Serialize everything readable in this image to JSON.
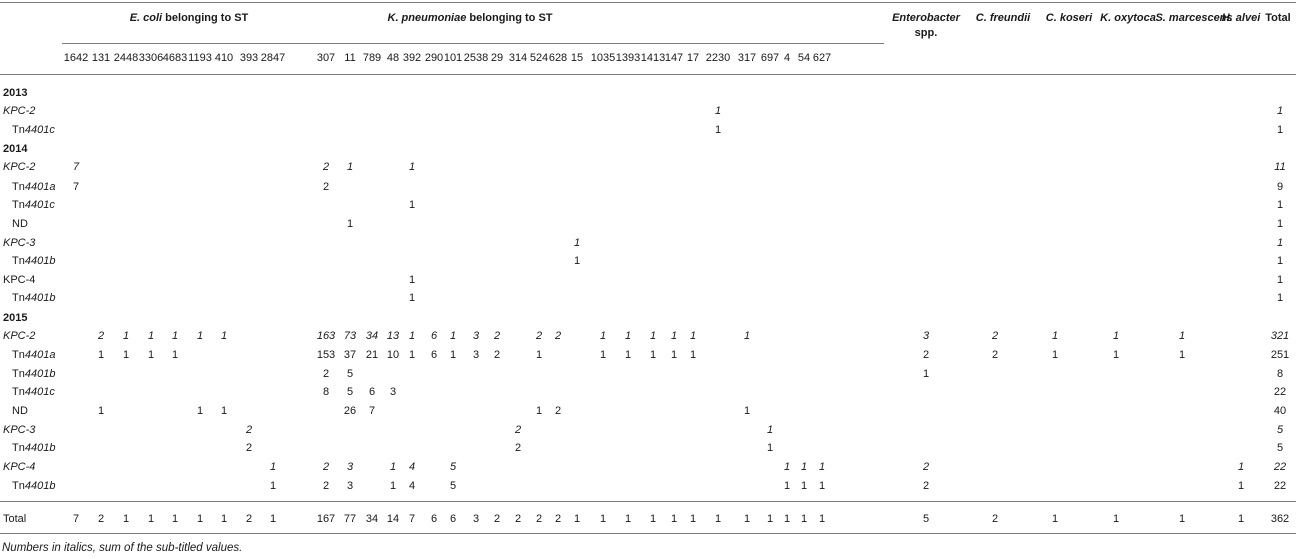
{
  "groups": {
    "ecoli_species": "E. coli",
    "ecoli_suffix": " belonging to ST",
    "kpn_species": "K. pneumoniae",
    "kpn_suffix": " belonging to ST",
    "enterobacter_line1": "Enterobacter",
    "enterobacter_line2": "spp.",
    "c_freundii": "C. freundii",
    "c_koseri": "C. koseri",
    "k_oxytoca": "K. oxytoca",
    "s_marcescens": "S. marcescens",
    "h_alvei": "H. alvei",
    "total": "Total"
  },
  "st_columns": [
    "1642",
    "131",
    "2448",
    "3306",
    "4683",
    "1193",
    "410",
    "393",
    "2847",
    "307",
    "11",
    "789",
    "48",
    "392",
    "290",
    "101",
    "2538",
    "29",
    "314",
    "524",
    "628",
    "15",
    "1035",
    "1393",
    "1413",
    "147",
    "17",
    "2230",
    "317",
    "697",
    "4",
    "54",
    "627"
  ],
  "rows": [
    {
      "label": "2013",
      "type": "year"
    },
    {
      "label": "KPC-2",
      "type": "kpc",
      "italic": true,
      "cells": {
        "2230": "1",
        "Total": "1"
      }
    },
    {
      "label_prefix": "Tn",
      "label_italic": "4401c",
      "type": "tn",
      "cells": {
        "2230": "1",
        "Total": "1"
      }
    },
    {
      "label": "2014",
      "type": "year"
    },
    {
      "label": "KPC-2",
      "type": "kpc",
      "italic": true,
      "cells": {
        "1642": "7",
        "307": "2",
        "11": "1",
        "392": "1",
        "Total": "11"
      }
    },
    {
      "label_prefix": "Tn",
      "label_italic": "4401a",
      "type": "tn",
      "cells": {
        "1642": "7",
        "307": "2",
        "Total": "9"
      }
    },
    {
      "label_prefix": "Tn",
      "label_italic": "4401c",
      "type": "tn",
      "cells": {
        "392": "1",
        "Total": "1"
      }
    },
    {
      "label": "ND",
      "type": "nd",
      "cells": {
        "11": "1",
        "Total": "1"
      }
    },
    {
      "label": "KPC-3",
      "type": "kpc",
      "italic": true,
      "cells": {
        "15": "1",
        "Total": "1"
      }
    },
    {
      "label_prefix": "Tn",
      "label_italic": "4401b",
      "type": "tn",
      "cells": {
        "15": "1",
        "Total": "1"
      }
    },
    {
      "label": "KPC-4",
      "type": "kpc",
      "italic": false,
      "cells": {
        "392": "1",
        "Total": "1"
      }
    },
    {
      "label_prefix": "Tn",
      "label_italic": "4401b",
      "type": "tn",
      "cells": {
        "392": "1",
        "Total": "1"
      }
    },
    {
      "label": "2015",
      "type": "year"
    },
    {
      "label": "KPC-2",
      "type": "kpc",
      "italic": true,
      "cells": {
        "131": "2",
        "2448": "1",
        "3306": "1",
        "4683": "1",
        "1193": "1",
        "410": "1",
        "307": "163",
        "11": "73",
        "789": "34",
        "48": "13",
        "392": "1",
        "290": "6",
        "101": "1",
        "2538": "3",
        "29": "2",
        "524": "2",
        "628": "2",
        "1035": "1",
        "1393": "1",
        "1413": "1",
        "147": "1",
        "17": "1",
        "317": "1",
        "Enterobacter": "3",
        "CF": "2",
        "CK": "1",
        "KO": "1",
        "SM": "1",
        "Total": "321"
      }
    },
    {
      "label_prefix": "Tn",
      "label_italic": "4401a",
      "type": "tn",
      "cells": {
        "131": "1",
        "2448": "1",
        "3306": "1",
        "4683": "1",
        "307": "153",
        "11": "37",
        "789": "21",
        "48": "10",
        "392": "1",
        "290": "6",
        "101": "1",
        "2538": "3",
        "29": "2",
        "524": "1",
        "1035": "1",
        "1393": "1",
        "1413": "1",
        "147": "1",
        "17": "1",
        "Enterobacter": "2",
        "CF": "2",
        "CK": "1",
        "KO": "1",
        "SM": "1",
        "Total": "251"
      }
    },
    {
      "label_prefix": "Tn",
      "label_italic": "4401b",
      "type": "tn",
      "cells": {
        "307": "2",
        "11": "5",
        "Enterobacter": "1",
        "Total": "8"
      }
    },
    {
      "label_prefix": "Tn",
      "label_italic": "4401c",
      "type": "tn",
      "cells": {
        "307": "8",
        "11": "5",
        "789": "6",
        "48": "3",
        "Total": "22"
      }
    },
    {
      "label": "ND",
      "type": "nd",
      "cells": {
        "131": "1",
        "1193": "1",
        "410": "1",
        "11": "26",
        "789": "7",
        "524": "1",
        "628": "2",
        "317": "1",
        "Total": "40"
      }
    },
    {
      "label": "KPC-3",
      "type": "kpc",
      "italic": true,
      "cells": {
        "393": "2",
        "314": "2",
        "697": "1",
        "Total": "5"
      }
    },
    {
      "label_prefix": "Tn",
      "label_italic": "4401b",
      "type": "tn",
      "cells": {
        "393": "2",
        "314": "2",
        "697": "1",
        "Total": "5"
      }
    },
    {
      "label": "KPC-4",
      "type": "kpc",
      "italic": true,
      "cells": {
        "2847": "1",
        "307": "2",
        "11": "3",
        "48": "1",
        "392": "4",
        "101": "5",
        "4": "1",
        "54": "1",
        "627": "1",
        "Enterobacter": "2",
        "HA": "1",
        "Total": "22"
      }
    },
    {
      "label_prefix": "Tn",
      "label_italic": "4401b",
      "type": "tn",
      "cells": {
        "2847": "1",
        "307": "2",
        "11": "3",
        "48": "1",
        "392": "4",
        "101": "5",
        "4": "1",
        "54": "1",
        "627": "1",
        "Enterobacter": "2",
        "HA": "1",
        "Total": "22"
      }
    }
  ],
  "total_row": {
    "label": "Total",
    "cells": {
      "1642": "7",
      "131": "2",
      "2448": "1",
      "3306": "1",
      "4683": "1",
      "1193": "1",
      "410": "1",
      "393": "2",
      "2847": "1",
      "307": "167",
      "11": "77",
      "789": "34",
      "48": "14",
      "392": "7",
      "290": "6",
      "101": "6",
      "2538": "3",
      "29": "2",
      "314": "2",
      "524": "2",
      "628": "2",
      "15": "1",
      "1035": "1",
      "1393": "1",
      "1413": "1",
      "147": "1",
      "17": "1",
      "2230": "1",
      "317": "1",
      "697": "1",
      "4": "1",
      "54": "1",
      "627": "1",
      "Enterobacter": "5",
      "CF": "2",
      "CK": "1",
      "KO": "1",
      "SM": "1",
      "HA": "1",
      "Total": "362"
    }
  },
  "footnote": "Numbers in italics, sum of the sub-titled values."
}
